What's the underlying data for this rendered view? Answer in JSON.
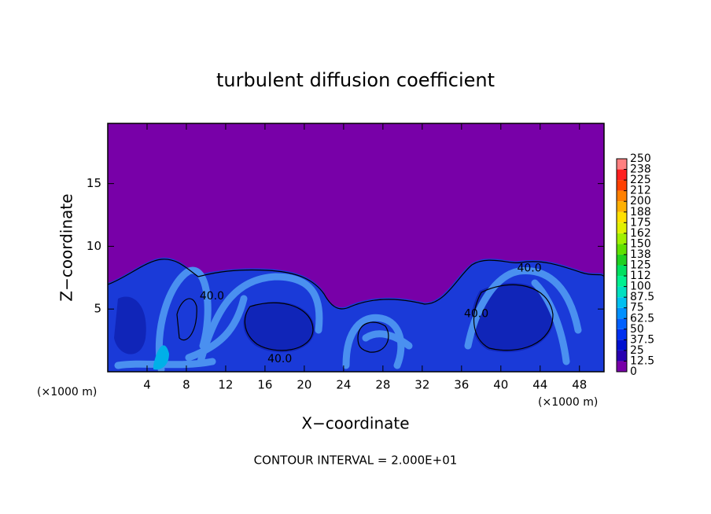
{
  "chart_data": {
    "type": "contour",
    "title": "turbulent diffusion coefficient",
    "x_label": "X−coordinate",
    "y_label": "Z−coordinate",
    "x_unit_left": "(×1000 m)",
    "x_unit_right": "(×1000 m)",
    "footnote": "CONTOUR INTERVAL = 2.000E+01",
    "xlim": [
      0,
      50.5
    ],
    "ylim": [
      0,
      19.8
    ],
    "xticks": [
      4,
      8,
      12,
      16,
      20,
      24,
      28,
      32,
      36,
      40,
      44,
      48
    ],
    "yticks": [
      5,
      10,
      15
    ],
    "contour_labels": [
      {
        "text": "40.0",
        "x": 10.6,
        "y": 6.0
      },
      {
        "text": "40.0",
        "x": 17.5,
        "y": 1.0
      },
      {
        "text": "40.0",
        "x": 37.5,
        "y": 4.6
      },
      {
        "text": "40.0",
        "x": 42.9,
        "y": 8.25
      }
    ],
    "colorbar": {
      "levels": [
        0,
        12.5,
        25,
        37.5,
        50,
        62.5,
        75,
        87.5,
        100,
        {
          "value": 112.5,
          "label": "112"
        },
        125,
        {
          "value": 137.5,
          "label": "138"
        },
        150,
        {
          "value": 162.5,
          "label": "162"
        },
        175,
        {
          "value": 187.5,
          "label": "188"
        },
        200,
        {
          "value": 212.5,
          "label": "212"
        },
        225,
        {
          "value": 237.5,
          "label": "238"
        },
        250
      ],
      "colors": [
        "#7800a8",
        "#2800b0",
        "#0010d0",
        "#0030f0",
        "#0060ff",
        "#0090ff",
        "#00c0f0",
        "#00e0c0",
        "#00f090",
        "#00e060",
        "#20d020",
        "#60e000",
        "#a0f000",
        "#e0f000",
        "#ffe000",
        "#ffb000",
        "#ff8000",
        "#ff4000",
        "#ff2020",
        "#ff8080"
      ]
    }
  }
}
